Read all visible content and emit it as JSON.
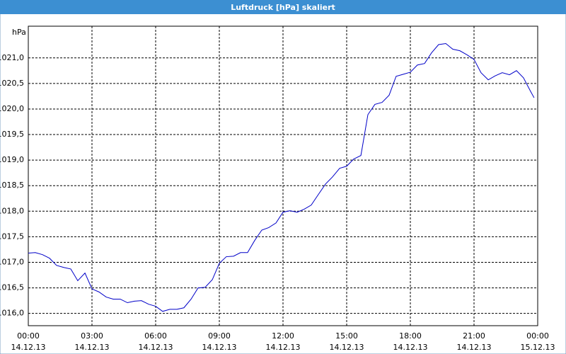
{
  "chart_data": {
    "type": "line",
    "title": "Luftdruck [hPa] skaliert",
    "ylabel": "hPa",
    "x": [
      0,
      0.33,
      0.67,
      1,
      1.33,
      1.67,
      2,
      2.33,
      2.67,
      3,
      3.33,
      3.67,
      4,
      4.33,
      4.67,
      5,
      5.33,
      5.67,
      6,
      6.33,
      6.67,
      7,
      7.33,
      7.67,
      8,
      8.33,
      8.67,
      9,
      9.33,
      9.67,
      10,
      10.33,
      10.67,
      11,
      11.33,
      11.67,
      12,
      12.33,
      12.67,
      13,
      13.33,
      13.67,
      14,
      14.33,
      14.67,
      15,
      15.33,
      15.67,
      16,
      16.33,
      16.67,
      17,
      17.33,
      17.67,
      18,
      18.33,
      18.67,
      19,
      19.33,
      19.67,
      20,
      20.33,
      20.67,
      21,
      21.33,
      21.67,
      22,
      22.33,
      22.67,
      23,
      23.33,
      23.67,
      23.83
    ],
    "series": [
      {
        "name": "Luftdruck",
        "color": "#0000c8",
        "values": [
          1017.18,
          1017.19,
          1017.15,
          1017.08,
          1016.94,
          1016.9,
          1016.87,
          1016.64,
          1016.79,
          1016.48,
          1016.42,
          1016.32,
          1016.28,
          1016.28,
          1016.21,
          1016.24,
          1016.25,
          1016.18,
          1016.14,
          1016.04,
          1016.08,
          1016.08,
          1016.11,
          1016.28,
          1016.5,
          1016.51,
          1016.66,
          1016.98,
          1017.11,
          1017.12,
          1017.19,
          1017.19,
          1017.43,
          1017.63,
          1017.68,
          1017.77,
          1017.98,
          1018.01,
          1017.98,
          1018.04,
          1018.12,
          1018.33,
          1018.53,
          1018.67,
          1018.84,
          1018.88,
          1019.02,
          1019.09,
          1019.89,
          1020.09,
          1020.13,
          1020.27,
          1020.64,
          1020.68,
          1020.72,
          1020.86,
          1020.89,
          1021.1,
          1021.26,
          1021.28,
          1021.17,
          1021.14,
          1021.06,
          1020.97,
          1020.71,
          1020.57,
          1020.65,
          1020.71,
          1020.67,
          1020.75,
          1020.61,
          1020.34,
          1020.22
        ]
      }
    ],
    "xlim": [
      0,
      24
    ],
    "xticks": [
      {
        "value": 0,
        "label": "00:00"
      },
      {
        "value": 3,
        "label": "03:00"
      },
      {
        "value": 6,
        "label": "06:00"
      },
      {
        "value": 9,
        "label": "09:00"
      },
      {
        "value": 12,
        "label": "12:00"
      },
      {
        "value": 15,
        "label": "15:00"
      },
      {
        "value": 18,
        "label": "18:00"
      },
      {
        "value": 21,
        "label": "21:00"
      },
      {
        "value": 24,
        "label": "00:00"
      }
    ],
    "xtick_dates": [
      "14.12.13",
      "14.12.13",
      "14.12.13",
      "14.12.13",
      "14.12.13",
      "14.12.13",
      "14.12.13",
      "14.12.13",
      "15.12.13"
    ],
    "ylim": [
      1015.76,
      1021.62
    ],
    "yticks": [
      {
        "value": 1016,
        "label": "1016,0"
      },
      {
        "value": 1016.5,
        "label": "1016,5"
      },
      {
        "value": 1017,
        "label": "1017,0"
      },
      {
        "value": 1017.5,
        "label": "1017,5"
      },
      {
        "value": 1018,
        "label": "1018,0"
      },
      {
        "value": 1018.5,
        "label": "1018,5"
      },
      {
        "value": 1019,
        "label": "1019,0"
      },
      {
        "value": 1019.5,
        "label": "1019,5"
      },
      {
        "value": 1020,
        "label": "1020,0"
      },
      {
        "value": 1020.5,
        "label": "1020,5"
      },
      {
        "value": 1021,
        "label": "1021,0"
      }
    ],
    "grid": true
  }
}
